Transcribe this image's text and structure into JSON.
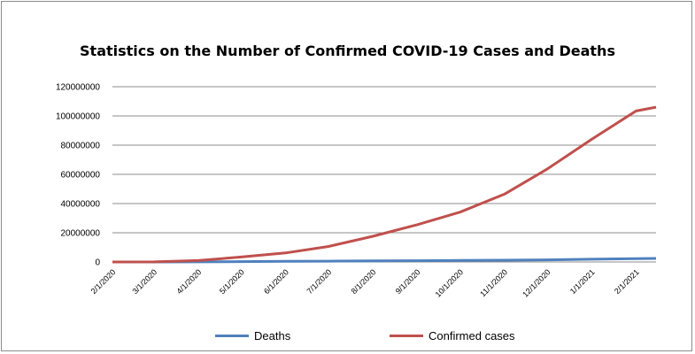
{
  "chart_data": {
    "type": "line",
    "title": "Statistics on the Number of Confirmed COVID-19 Cases and Deaths",
    "xlabel": "",
    "ylabel": "",
    "ylim": [
      0,
      120000000
    ],
    "y_ticks": [
      "0",
      "20000000",
      "40000000",
      "60000000",
      "80000000",
      "100000000",
      "120000000"
    ],
    "y_tick_values": [
      0,
      20000000,
      40000000,
      60000000,
      80000000,
      100000000,
      120000000
    ],
    "x_ticks": [
      "2/1/2020",
      "3/1/2020",
      "4/1/2020",
      "5/1/2020",
      "6/1/2020",
      "7/1/2020",
      "8/1/2020",
      "9/1/2020",
      "10/1/2020",
      "11/1/2020",
      "12/1/2020",
      "1/1/2021",
      "2/1/2021"
    ],
    "x": [
      "2/1/2020",
      "3/1/2020",
      "4/1/2020",
      "5/1/2020",
      "6/1/2020",
      "7/1/2020",
      "8/1/2020",
      "9/1/2020",
      "10/1/2020",
      "11/1/2020",
      "12/1/2020",
      "1/1/2021",
      "2/1/2021",
      "2/15/2021"
    ],
    "grid": true,
    "legend_position": "bottom",
    "series": [
      {
        "name": "Deaths",
        "color": "#4f81bd",
        "values": [
          300,
          3000,
          50000,
          250000,
          400000,
          520000,
          700000,
          860000,
          1030000,
          1220000,
          1480000,
          1860000,
          2240000,
          2400000
        ]
      },
      {
        "name": "Confirmed cases",
        "color": "#c0504d",
        "values": [
          10000,
          90000,
          1000000,
          3400000,
          6200000,
          10600000,
          17600000,
          25500000,
          34100000,
          46400000,
          63700000,
          84000000,
          103400000,
          106000000
        ]
      }
    ]
  }
}
